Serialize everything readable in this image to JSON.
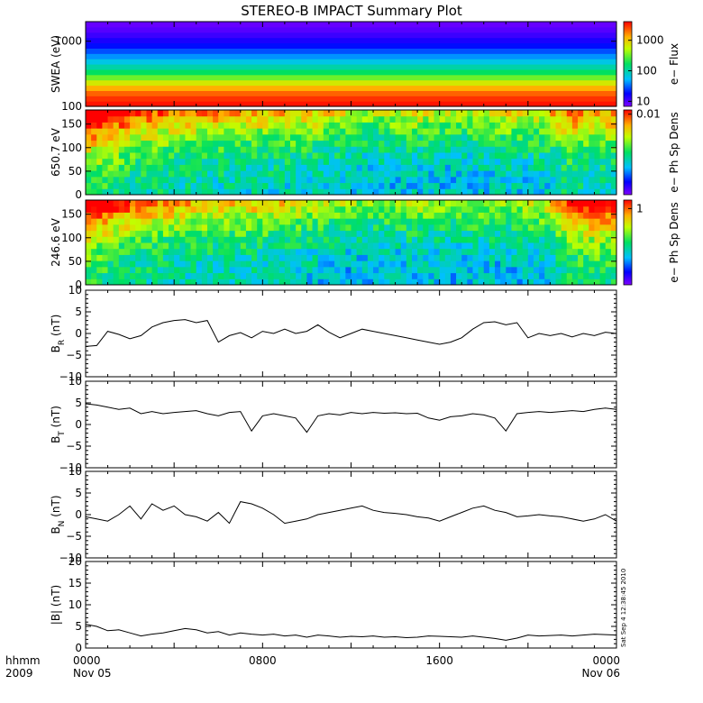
{
  "chart_data": {
    "type": "multi-panel",
    "title": "STEREO-B IMPACT Summary Plot",
    "x_axis": {
      "ticks": [
        {
          "label": "0000",
          "sublabel": "Nov 05",
          "hour": 0
        },
        {
          "label": "0800",
          "sublabel": "",
          "hour": 8
        },
        {
          "label": "1600",
          "sublabel": "",
          "hour": 16
        },
        {
          "label": "0000",
          "sublabel": "Nov 06",
          "hour": 24
        }
      ],
      "range_hours": [
        0,
        24
      ],
      "corner_label_1": "hhmm",
      "corner_label_2": "2009"
    },
    "timestamp": "Sat Sep  4 12:38:45 2010",
    "panels": [
      {
        "kind": "spectrogram",
        "ylabel": "SWEA (eV)",
        "yscale": "log",
        "ylim": [
          100,
          2000
        ],
        "yticks": [
          {
            "v": 100,
            "label": "100"
          },
          {
            "v": 1000,
            "label": "1000"
          }
        ],
        "colorbar_label": "e− Flux",
        "colorbar_ticks": [
          {
            "label": "1000",
            "f": 0.22
          },
          {
            "label": "100",
            "f": 0.58
          },
          {
            "label": "10",
            "f": 0.94
          }
        ],
        "bands": [
          0.98,
          0.95,
          0.9,
          0.82,
          0.72,
          0.6,
          0.5,
          0.42,
          0.35,
          0.28,
          0.22,
          0.16,
          0.12,
          0.08,
          0.05,
          0.03
        ]
      },
      {
        "kind": "pitch",
        "ylabel": "650.7 eV",
        "ylim": [
          0,
          180
        ],
        "yticks": [
          {
            "v": 0,
            "label": "0"
          },
          {
            "v": 50,
            "label": "50"
          },
          {
            "v": 100,
            "label": "100"
          },
          {
            "v": 150,
            "label": "150"
          }
        ],
        "colorbar_label": "e− Ph Sp Dens",
        "colorbar_ticks": [
          {
            "label": "0.01",
            "f": 0.05
          }
        ],
        "activity": [
          0.95,
          0.8,
          0.65,
          0.55,
          0.5,
          0.45,
          0.45,
          0.42,
          0.4,
          0.38,
          0.35,
          0.3,
          0.22,
          0.15,
          0.2,
          0.25,
          0.2,
          0.15,
          0.2,
          0.3,
          0.25,
          0.3,
          0.6,
          0.35,
          0.5
        ]
      },
      {
        "kind": "pitch",
        "ylabel": "246.6 eV",
        "ylim": [
          0,
          180
        ],
        "yticks": [
          {
            "v": 0,
            "label": "0"
          },
          {
            "v": 50,
            "label": "50"
          },
          {
            "v": 100,
            "label": "100"
          },
          {
            "v": 150,
            "label": "150"
          }
        ],
        "colorbar_label": "e− Ph Sp Dens",
        "colorbar_ticks": [
          {
            "label": "1",
            "f": 0.1
          }
        ],
        "activity": [
          0.95,
          0.7,
          0.6,
          0.5,
          0.45,
          0.4,
          0.4,
          0.38,
          0.36,
          0.3,
          0.25,
          0.2,
          0.12,
          0.1,
          0.15,
          0.2,
          0.15,
          0.12,
          0.18,
          0.15,
          0.2,
          0.25,
          0.7,
          0.75,
          0.8
        ]
      },
      {
        "kind": "line",
        "ylabel_main": "B",
        "ylabel_sub": "R",
        "ylabel_unit": " (nT)",
        "ylim": [
          -10,
          10
        ],
        "yticks": [
          {
            "v": -10,
            "label": "−10"
          },
          {
            "v": -5,
            "label": "−5"
          },
          {
            "v": 0,
            "label": "0"
          },
          {
            "v": 5,
            "label": "5"
          },
          {
            "v": 10,
            "label": "10"
          }
        ],
        "x": [
          0,
          0.5,
          1,
          1.5,
          2,
          2.5,
          3,
          3.5,
          4,
          4.5,
          5,
          5.5,
          6,
          6.5,
          7,
          7.5,
          8,
          8.5,
          9,
          9.5,
          10,
          10.5,
          11,
          11.5,
          12,
          12.5,
          13,
          13.5,
          14,
          14.5,
          15,
          15.5,
          16,
          16.5,
          17,
          17.5,
          18,
          18.5,
          19,
          19.5,
          20,
          20.5,
          21,
          21.5,
          22,
          22.5,
          23,
          23.5,
          24
        ],
        "y": [
          -3,
          -2.8,
          0.5,
          -0.2,
          -1.2,
          -0.5,
          1.5,
          2.5,
          3,
          3.2,
          2.5,
          3,
          -2,
          -0.5,
          0.2,
          -1,
          0.5,
          0,
          1,
          0,
          0.5,
          2,
          0.3,
          -1,
          0,
          1,
          0.5,
          0,
          -0.5,
          -1,
          -1.5,
          -2,
          -2.5,
          -2,
          -1,
          1,
          2.5,
          2.7,
          2,
          2.5,
          -1,
          0,
          -0.5,
          0,
          -0.8,
          0,
          -0.5,
          0.3,
          0
        ]
      },
      {
        "kind": "line",
        "ylabel_main": "B",
        "ylabel_sub": "T",
        "ylabel_unit": " (nT)",
        "ylim": [
          -10,
          10
        ],
        "yticks": [
          {
            "v": -10,
            "label": "−10"
          },
          {
            "v": -5,
            "label": "−5"
          },
          {
            "v": 0,
            "label": "0"
          },
          {
            "v": 5,
            "label": "5"
          },
          {
            "v": 10,
            "label": "10"
          }
        ],
        "x": [
          0,
          0.5,
          1,
          1.5,
          2,
          2.5,
          3,
          3.5,
          4,
          4.5,
          5,
          5.5,
          6,
          6.5,
          7,
          7.5,
          8,
          8.5,
          9,
          9.5,
          10,
          10.5,
          11,
          11.5,
          12,
          12.5,
          13,
          13.5,
          14,
          14.5,
          15,
          15.5,
          16,
          16.5,
          17,
          17.5,
          18,
          18.5,
          19,
          19.5,
          20,
          20.5,
          21,
          21.5,
          22,
          22.5,
          23,
          23.5,
          24
        ],
        "y": [
          4.8,
          4.5,
          4,
          3.5,
          3.8,
          2.5,
          3,
          2.5,
          2.8,
          3,
          3.2,
          2.5,
          2,
          2.8,
          3,
          -1.5,
          2,
          2.5,
          2,
          1.5,
          -1.8,
          2,
          2.5,
          2.2,
          2.8,
          2.5,
          2.8,
          2.6,
          2.7,
          2.5,
          2.6,
          1.5,
          1,
          1.8,
          2,
          2.5,
          2.2,
          1.5,
          -1.5,
          2.5,
          2.8,
          3,
          2.8,
          3,
          3.2,
          3,
          3.5,
          3.8,
          3.5
        ]
      },
      {
        "kind": "line",
        "ylabel_main": "B",
        "ylabel_sub": "N",
        "ylabel_unit": " (nT)",
        "ylim": [
          -10,
          10
        ],
        "yticks": [
          {
            "v": -10,
            "label": "−10"
          },
          {
            "v": -5,
            "label": "−5"
          },
          {
            "v": 0,
            "label": "0"
          },
          {
            "v": 5,
            "label": "5"
          },
          {
            "v": 10,
            "label": "10"
          }
        ],
        "x": [
          0,
          0.5,
          1,
          1.5,
          2,
          2.5,
          3,
          3.5,
          4,
          4.5,
          5,
          5.5,
          6,
          6.5,
          7,
          7.5,
          8,
          8.5,
          9,
          9.5,
          10,
          10.5,
          11,
          11.5,
          12,
          12.5,
          13,
          13.5,
          14,
          14.5,
          15,
          15.5,
          16,
          16.5,
          17,
          17.5,
          18,
          18.5,
          19,
          19.5,
          20,
          20.5,
          21,
          21.5,
          22,
          22.5,
          23,
          23.5,
          24
        ],
        "y": [
          -0.5,
          -1,
          -1.5,
          0,
          2,
          -1,
          2.5,
          1,
          2,
          0,
          -0.5,
          -1.5,
          0.5,
          -2,
          3,
          2.5,
          1.5,
          0,
          -2,
          -1.5,
          -1,
          0,
          0.5,
          1,
          1.5,
          2,
          1,
          0.5,
          0.3,
          0,
          -0.5,
          -0.8,
          -1.5,
          -0.5,
          0.5,
          1.5,
          2,
          1,
          0.5,
          -0.5,
          -0.3,
          0,
          -0.3,
          -0.5,
          -1,
          -1.5,
          -1,
          0,
          -1.5
        ]
      },
      {
        "kind": "line",
        "ylabel_main": "|B| (nT)",
        "ylim": [
          0,
          20
        ],
        "yticks": [
          {
            "v": 0,
            "label": "0"
          },
          {
            "v": 5,
            "label": "5"
          },
          {
            "v": 10,
            "label": "10"
          },
          {
            "v": 15,
            "label": "15"
          },
          {
            "v": 20,
            "label": "20"
          }
        ],
        "x": [
          0,
          0.5,
          1,
          1.5,
          2,
          2.5,
          3,
          3.5,
          4,
          4.5,
          5,
          5.5,
          6,
          6.5,
          7,
          7.5,
          8,
          8.5,
          9,
          9.5,
          10,
          10.5,
          11,
          11.5,
          12,
          12.5,
          13,
          13.5,
          14,
          14.5,
          15,
          15.5,
          16,
          16.5,
          17,
          17.5,
          18,
          18.5,
          19,
          19.5,
          20,
          20.5,
          21,
          21.5,
          22,
          22.5,
          23,
          23.5,
          24
        ],
        "y": [
          5.5,
          5,
          4,
          4.2,
          3.5,
          2.8,
          3.2,
          3.5,
          4,
          4.5,
          4.2,
          3.5,
          3.8,
          3,
          3.5,
          3.2,
          3,
          3.2,
          2.8,
          3,
          2.5,
          3,
          2.8,
          2.5,
          2.7,
          2.6,
          2.8,
          2.5,
          2.6,
          2.4,
          2.5,
          2.8,
          2.7,
          2.6,
          2.5,
          2.8,
          2.5,
          2.2,
          1.8,
          2.3,
          3,
          2.8,
          2.9,
          3,
          2.8,
          3,
          3.2,
          3.1,
          3
        ]
      }
    ]
  }
}
